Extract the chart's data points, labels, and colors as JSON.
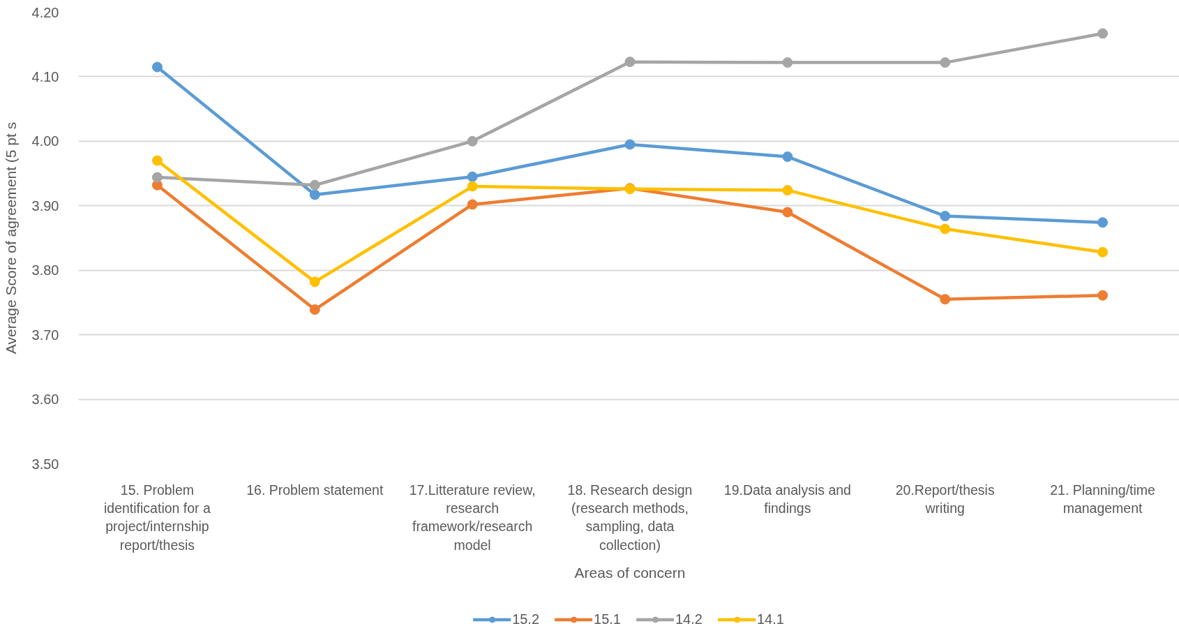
{
  "chart_data": {
    "type": "line",
    "xlabel": "Areas of concern",
    "ylabel": "Average Score of agreement (5 pt s",
    "categories": [
      "15. Problem identification for a project/internship report/thesis",
      "16. Problem statement",
      "17.Litterature review, research framework/research model",
      "18. Research design (research methods, sampling, data collection)",
      "19.Data analysis and findings",
      "20.Report/thesis writing",
      "21. Planning/time management"
    ],
    "series": [
      {
        "name": "15.2",
        "color": "#5b9bd5",
        "values": [
          4.115,
          3.917,
          3.945,
          3.995,
          3.976,
          3.884,
          3.874
        ]
      },
      {
        "name": "15.1",
        "color": "#ed7d31",
        "values": [
          3.932,
          3.739,
          3.902,
          3.927,
          3.89,
          3.755,
          3.761
        ]
      },
      {
        "name": "14.2",
        "color": "#a5a5a5",
        "values": [
          3.944,
          3.932,
          4.0,
          4.123,
          4.122,
          4.122,
          4.167
        ]
      },
      {
        "name": "14.1",
        "color": "#ffc000",
        "values": [
          3.97,
          3.782,
          3.93,
          3.926,
          3.924,
          3.864,
          3.828
        ]
      }
    ],
    "ylim": [
      3.5,
      4.2
    ],
    "yticks": [
      {
        "value": 3.5,
        "label": "3.50"
      },
      {
        "value": 3.6,
        "label": "3.60"
      },
      {
        "value": 3.7,
        "label": "3.70"
      },
      {
        "value": 3.8,
        "label": "3.80"
      },
      {
        "value": 3.9,
        "label": "3.90"
      },
      {
        "value": 4.0,
        "label": "4.00"
      },
      {
        "value": 4.1,
        "label": "4.10"
      },
      {
        "value": 4.2,
        "label": "4.20"
      }
    ],
    "grid": "y",
    "legend": "bottom",
    "marker": "circle"
  }
}
